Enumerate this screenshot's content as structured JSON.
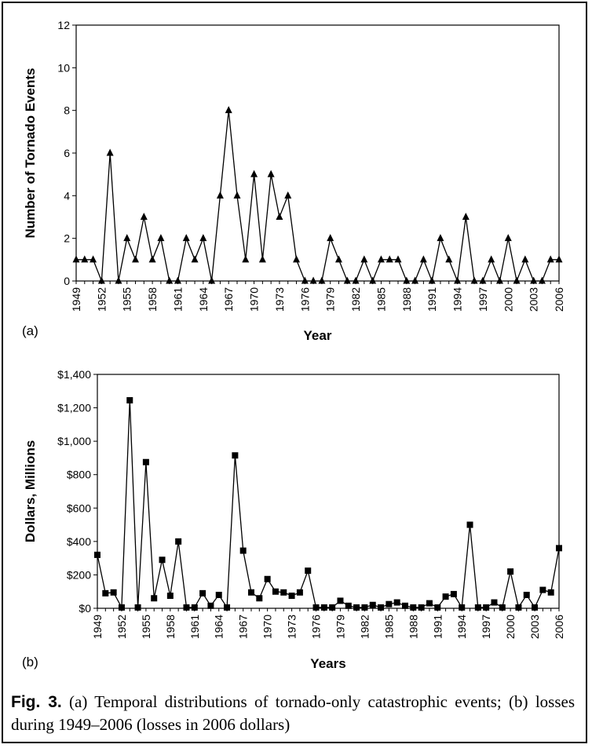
{
  "chart_data": [
    {
      "type": "line",
      "panel_label": "(a)",
      "title": "",
      "xlabel": "Year",
      "ylabel": "Number of Tornado Events",
      "ylim": [
        0,
        12
      ],
      "yticks": [
        "0",
        "2",
        "4",
        "6",
        "8",
        "10",
        "12"
      ],
      "xlim": [
        1949,
        2006
      ],
      "xticks": [
        "1949",
        "1952",
        "1955",
        "1958",
        "1961",
        "1964",
        "1967",
        "1970",
        "1973",
        "1976",
        "1979",
        "1982",
        "1985",
        "1988",
        "1991",
        "1994",
        "1997",
        "2000",
        "2003",
        "2006"
      ],
      "marker": "triangle",
      "x": [
        1949,
        1950,
        1951,
        1952,
        1953,
        1954,
        1955,
        1956,
        1957,
        1958,
        1959,
        1960,
        1961,
        1962,
        1963,
        1964,
        1965,
        1966,
        1967,
        1968,
        1969,
        1970,
        1971,
        1972,
        1973,
        1974,
        1975,
        1976,
        1977,
        1978,
        1979,
        1980,
        1981,
        1982,
        1983,
        1984,
        1985,
        1986,
        1987,
        1988,
        1989,
        1990,
        1991,
        1992,
        1993,
        1994,
        1995,
        1996,
        1997,
        1998,
        1999,
        2000,
        2001,
        2002,
        2003,
        2004,
        2005,
        2006
      ],
      "values": [
        1,
        1,
        1,
        0,
        6,
        0,
        2,
        1,
        3,
        1,
        2,
        0,
        0,
        2,
        1,
        2,
        0,
        4,
        8,
        4,
        1,
        5,
        1,
        5,
        3,
        4,
        1,
        0,
        0,
        0,
        2,
        1,
        0,
        0,
        1,
        0,
        1,
        1,
        1,
        0,
        0,
        1,
        0,
        2,
        1,
        0,
        3,
        0,
        0,
        1,
        0,
        2,
        0,
        1,
        0,
        0,
        1,
        1
      ]
    },
    {
      "type": "line",
      "panel_label": "(b)",
      "title": "",
      "xlabel": "Years",
      "ylabel": "Dollars, Millions",
      "ylim": [
        0,
        1400
      ],
      "yticks": [
        "$0",
        "$200",
        "$400",
        "$600",
        "$800",
        "$1,000",
        "$1,200",
        "$1,400"
      ],
      "xlim": [
        1949,
        2006
      ],
      "xticks": [
        "1949",
        "1952",
        "1955",
        "1958",
        "1961",
        "1964",
        "1967",
        "1970",
        "1973",
        "1976",
        "1979",
        "1982",
        "1985",
        "1988",
        "1991",
        "1994",
        "1997",
        "2000",
        "2003",
        "2006"
      ],
      "marker": "square",
      "x": [
        1949,
        1950,
        1951,
        1952,
        1953,
        1954,
        1955,
        1956,
        1957,
        1958,
        1959,
        1960,
        1961,
        1962,
        1963,
        1964,
        1965,
        1966,
        1967,
        1968,
        1969,
        1970,
        1971,
        1972,
        1973,
        1974,
        1975,
        1976,
        1977,
        1978,
        1979,
        1980,
        1981,
        1982,
        1983,
        1984,
        1985,
        1986,
        1987,
        1988,
        1989,
        1990,
        1991,
        1992,
        1993,
        1994,
        1995,
        1996,
        1997,
        1998,
        1999,
        2000,
        2001,
        2002,
        2003,
        2004,
        2005,
        2006
      ],
      "values": [
        320,
        90,
        95,
        5,
        1245,
        5,
        875,
        60,
        290,
        75,
        400,
        5,
        5,
        90,
        15,
        80,
        5,
        915,
        345,
        95,
        60,
        175,
        100,
        95,
        75,
        95,
        225,
        5,
        5,
        5,
        45,
        15,
        5,
        5,
        20,
        5,
        25,
        35,
        15,
        5,
        5,
        30,
        5,
        70,
        85,
        5,
        500,
        5,
        5,
        35,
        5,
        220,
        5,
        80,
        5,
        110,
        95,
        360
      ]
    }
  ],
  "caption": {
    "label": "Fig. 3.",
    "text": "(a) Temporal distributions of tornado-only catastrophic events; (b) losses during 1949–2006 (losses in 2006 dollars)"
  }
}
